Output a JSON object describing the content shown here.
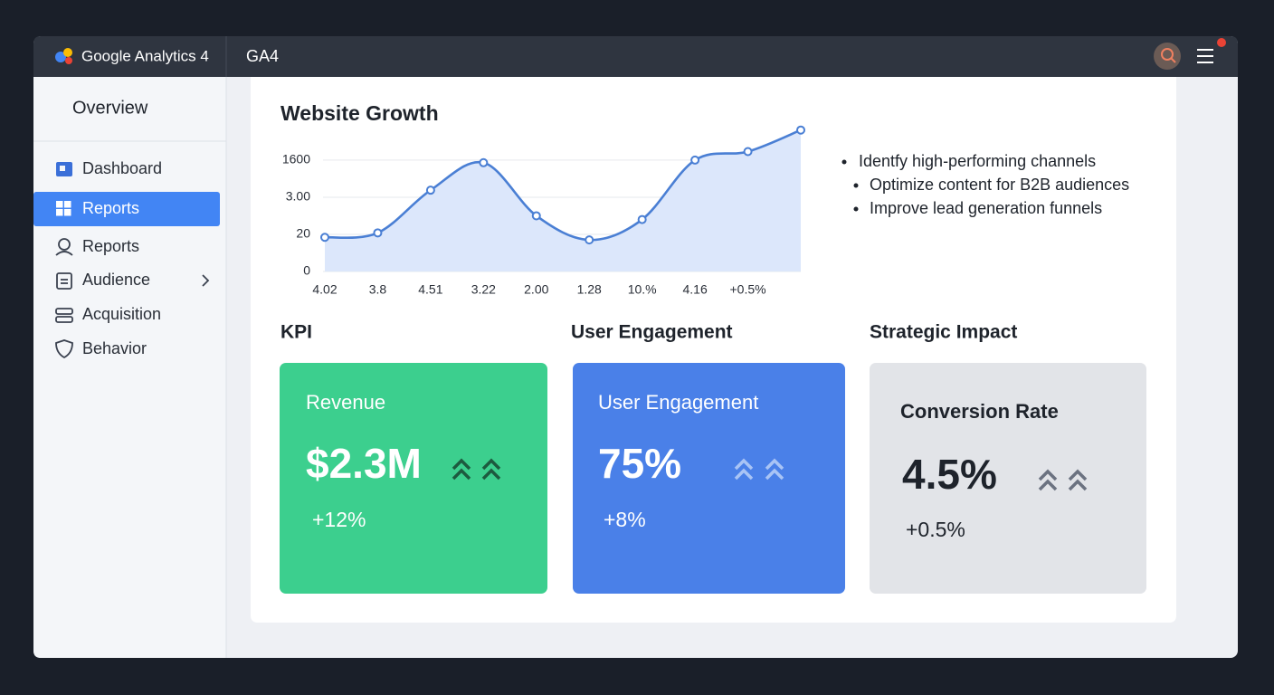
{
  "header": {
    "app_name": "Google Analytics 4",
    "property": "GA4"
  },
  "sidebar": {
    "title": "Overview",
    "items": [
      "Dashboard",
      "Reports",
      "Reports",
      "Audience",
      "Acquisition",
      "Behavior"
    ]
  },
  "chart_data": {
    "type": "area",
    "title": "Website Growth",
    "categories": [
      "4.02",
      "3.8",
      "4.51",
      "3.22",
      "2.00",
      "1.28",
      "10.%",
      "4.16",
      "+0.5%",
      null
    ],
    "values": [
      0.92,
      1.04,
      2.19,
      2.93,
      1.5,
      0.85,
      1.4,
      3.0,
      3.23,
      3.81
    ],
    "color": "#4a7fd4",
    "fill": "#dce7fb",
    "ylim": [
      0,
      3.9
    ],
    "yticks": [
      0,
      {
        "value": 1,
        "label": "20"
      },
      {
        "value": 2,
        "label": "3.00"
      },
      {
        "value": 3,
        "label": "1600"
      }
    ],
    "grid": true
  },
  "insights": [
    "Identfy high-performing channels",
    "Optimize content for B2B audiences",
    "Improve lead generation funnels"
  ],
  "sections": [
    {
      "heading": "KPI",
      "card": {
        "label": "Revenue",
        "value": "$2.3M",
        "change": "+12%"
      }
    },
    {
      "heading": "User Engagement",
      "card": {
        "label": "User Engagement",
        "value": "75%",
        "change": "+8%"
      }
    },
    {
      "heading": "Strategic Impact",
      "card": {
        "label": "Conversion Rate",
        "value": "4.5%",
        "change": "+0.5%"
      }
    }
  ]
}
